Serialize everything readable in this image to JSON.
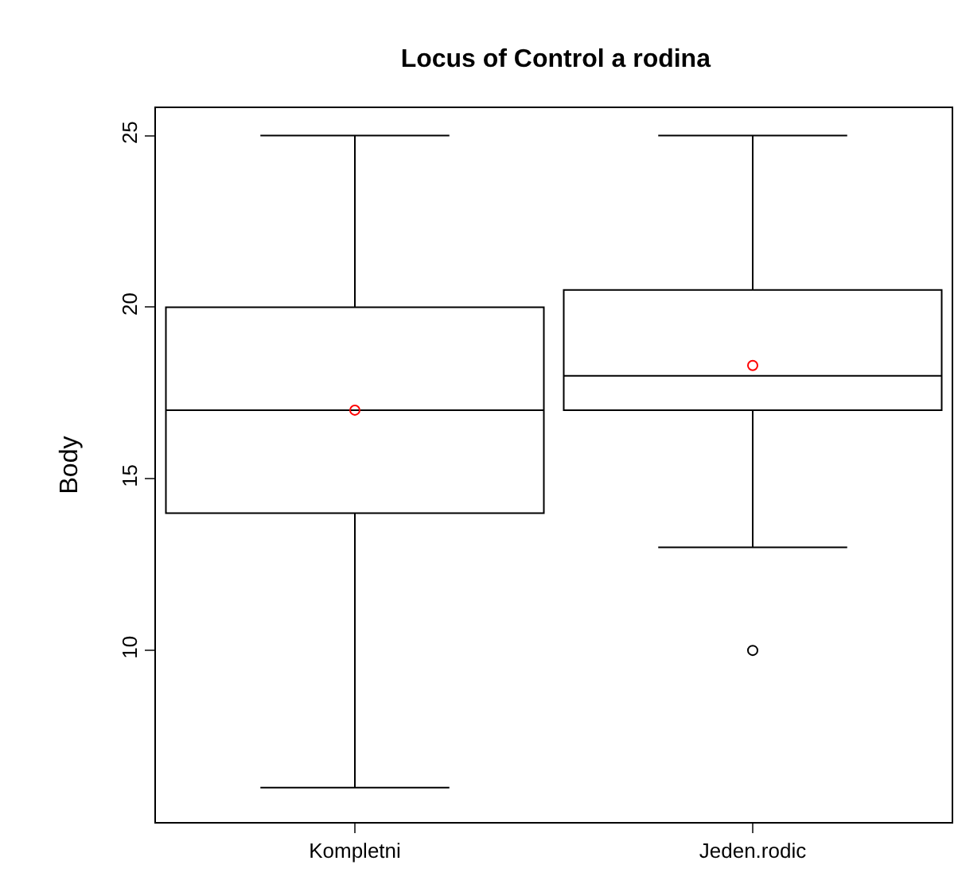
{
  "chart_data": {
    "type": "box",
    "title": "Locus of Control a rodina",
    "ylabel": "Body",
    "categories": [
      "Kompletni",
      "Jeden.rodic"
    ],
    "boxes": [
      {
        "low": 6,
        "q1": 14,
        "median": 17,
        "q3": 20,
        "high": 25,
        "mean": 17
      },
      {
        "low": 13,
        "q1": 17,
        "median": 18,
        "q3": 20.5,
        "high": 25,
        "mean": 18.3,
        "outliers": [
          10
        ]
      }
    ],
    "ylim": [
      5,
      25.8
    ],
    "yticks": [
      10,
      15,
      20,
      25
    ]
  }
}
